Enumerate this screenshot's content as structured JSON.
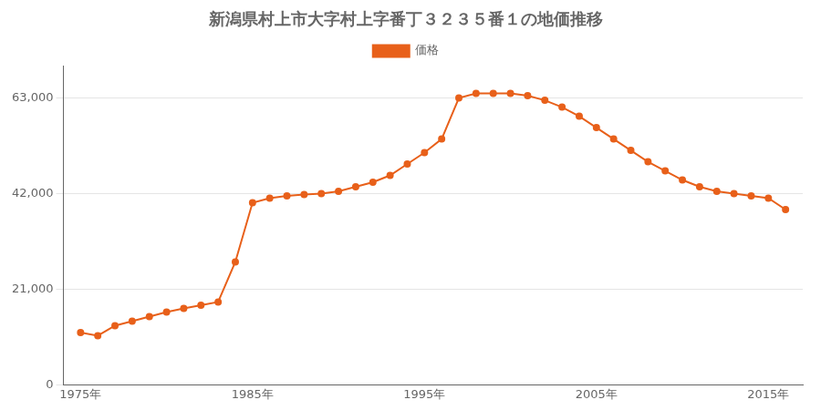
{
  "chart_data": {
    "type": "line",
    "title": "新潟県村上市大字村上字番丁３２３５番１の地価推移",
    "x": [
      1975,
      1976,
      1977,
      1978,
      1979,
      1980,
      1981,
      1982,
      1983,
      1984,
      1985,
      1986,
      1987,
      1988,
      1989,
      1990,
      1991,
      1992,
      1993,
      1994,
      1995,
      1996,
      1997,
      1998,
      1999,
      2000,
      2001,
      2002,
      2003,
      2004,
      2005,
      2006,
      2007,
      2008,
      2009,
      2010,
      2011,
      2012,
      2013,
      2014,
      2015,
      2016
    ],
    "series": [
      {
        "name": "価格",
        "color": "#E8601A",
        "marker": "circle",
        "values": [
          11500,
          10800,
          13000,
          14000,
          15000,
          16000,
          16800,
          17500,
          18200,
          27000,
          40000,
          41000,
          41500,
          41800,
          42000,
          42500,
          43500,
          44500,
          46000,
          48500,
          51000,
          54000,
          63000,
          64000,
          64000,
          64000,
          63500,
          62500,
          61000,
          59000,
          56500,
          54000,
          51500,
          49000,
          47000,
          45000,
          43500,
          42500,
          42000,
          41500,
          41000,
          38500
        ]
      }
    ],
    "xlim": [
      1974,
      2017
    ],
    "xticks": [
      {
        "value": 1975,
        "label": "1975年"
      },
      {
        "value": 1985,
        "label": "1985年"
      },
      {
        "value": 1995,
        "label": "1995年"
      },
      {
        "value": 2005,
        "label": "2005年"
      },
      {
        "value": 2015,
        "label": "2015年"
      }
    ],
    "ylim": [
      0,
      70000
    ],
    "yticks": [
      0,
      {
        "value": 21000,
        "label": "21,000"
      },
      {
        "value": 42000,
        "label": "42,000"
      },
      {
        "value": 63000,
        "label": "63,000"
      }
    ],
    "grid": true,
    "legend": "top"
  }
}
